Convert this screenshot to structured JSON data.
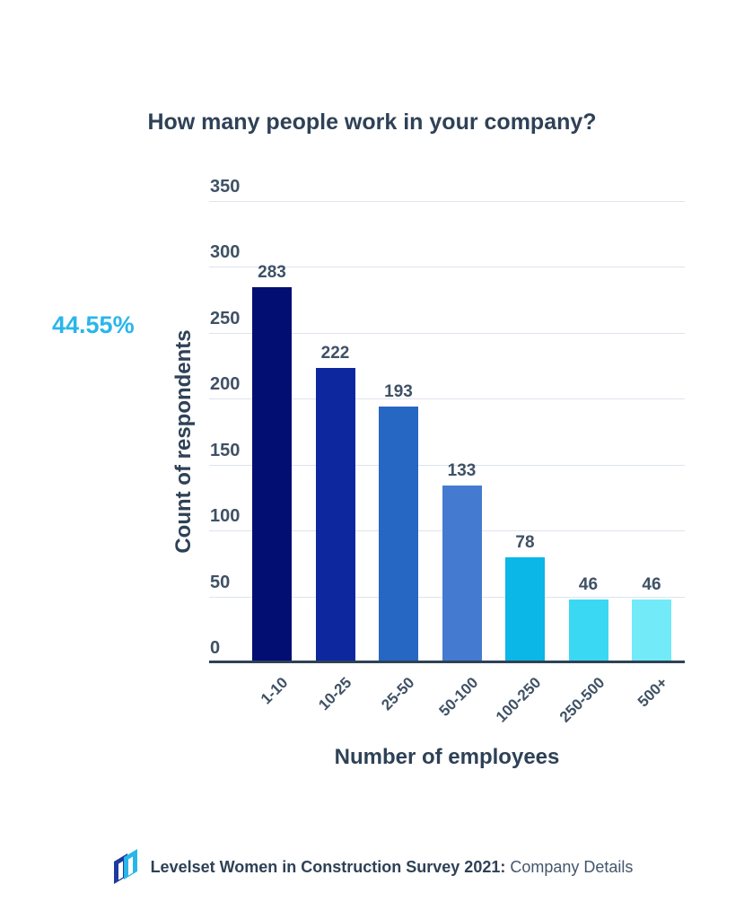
{
  "chart_data": {
    "type": "bar",
    "title": "How many people work in your company?",
    "xlabel": "Number of employees",
    "ylabel": "Count of respondents",
    "categories": [
      "1-10",
      "10-25",
      "25-50",
      "50-100",
      "100-250",
      "250-500",
      "500+"
    ],
    "values": [
      283,
      222,
      193,
      133,
      78,
      46,
      46
    ],
    "bar_colors": [
      "#030e72",
      "#0d289e",
      "#2767c4",
      "#447bd0",
      "#0ab7e6",
      "#3bd8f3",
      "#72eaf8"
    ],
    "ylim": [
      0,
      350
    ],
    "yticks": [
      0,
      50,
      100,
      150,
      200,
      250,
      300,
      350
    ],
    "grid": true,
    "legend": "none",
    "gridline_color": "#dde4ed",
    "axis_color": "#2e4156",
    "title_color": "#2e4156",
    "label_color": "#3f5165"
  },
  "callout": {
    "value": "44.55%",
    "color": "#29b6ea"
  },
  "footer": {
    "logo_icon": "levelset-logo",
    "logo_navy": "#1d3a9e",
    "logo_cyan": "#29b6ea",
    "title_bold": "Levelset Women in Construction Survey 2021:",
    "title_regular": "Company Details"
  }
}
